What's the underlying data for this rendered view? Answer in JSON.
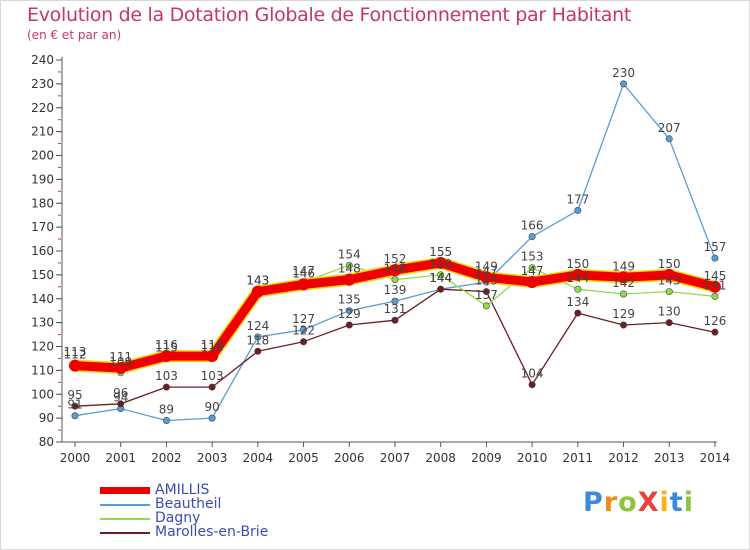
{
  "header": {
    "title": "Evolution de la Dotation Globale de Fonctionnement par Habitant",
    "subtitle": "(en € et par an)"
  },
  "brand": {
    "text": "ProXiti",
    "letters": [
      {
        "ch": "P",
        "color": "#3c8bd8"
      },
      {
        "ch": "r",
        "color": "#f08a1c"
      },
      {
        "ch": "o",
        "color": "#8cc63f"
      },
      {
        "ch": "X",
        "color": "#e8403a"
      },
      {
        "ch": "i",
        "color": "#f5b21a"
      },
      {
        "ch": "t",
        "color": "#3c8bd8"
      },
      {
        "ch": "i",
        "color": "#8cc63f"
      }
    ]
  },
  "chart_data": {
    "type": "line",
    "x": [
      "2000",
      "2001",
      "2002",
      "2003",
      "2004",
      "2005",
      "2006",
      "2007",
      "2008",
      "2009",
      "2010",
      "2011",
      "2012",
      "2013",
      "2014"
    ],
    "ylim": [
      80,
      240
    ],
    "yticks": [
      80,
      90,
      100,
      110,
      120,
      130,
      140,
      150,
      160,
      170,
      180,
      190,
      200,
      210,
      220,
      230,
      240
    ],
    "grid": false,
    "legend_position": "bottom-left",
    "series": [
      {
        "name": "AMILLIS",
        "color": "#ee0000",
        "values": [
          112,
          111,
          116,
          116,
          143,
          146,
          148,
          152,
          155,
          149,
          147,
          150,
          149,
          150,
          145
        ],
        "labels": [
          "112",
          "111",
          "116",
          "116",
          "143",
          "146",
          "148",
          "152",
          "155",
          "149",
          "147",
          "150",
          "149",
          "150",
          "145"
        ]
      },
      {
        "name": "Beautheil",
        "color": "#5b9bd5",
        "values": [
          91,
          94,
          89,
          90,
          124,
          127,
          135,
          139,
          144,
          147,
          166,
          177,
          230,
          207,
          157
        ],
        "labels": [
          "91",
          "94",
          "89",
          "90",
          "124",
          "127",
          "135",
          "139",
          "144",
          "147",
          "166",
          "177",
          "230",
          "207",
          "157"
        ]
      },
      {
        "name": "Dagny",
        "color": "#8fdc4c",
        "values": [
          113,
          109,
          115,
          115,
          143,
          147,
          154,
          148,
          150,
          137,
          153,
          144,
          142,
          143,
          141
        ],
        "labels": [
          "113",
          "109",
          "115",
          "115",
          "143",
          "147",
          "154",
          "148",
          "150",
          "137",
          "153",
          "144",
          "142",
          "143",
          "141"
        ]
      },
      {
        "name": "Marolles-en-Brie",
        "color": "#6b1f23",
        "values": [
          95,
          96,
          103,
          103,
          118,
          122,
          129,
          131,
          144,
          143,
          104,
          134,
          129,
          130,
          126
        ],
        "labels": [
          "95",
          "96",
          "103",
          "103",
          "118",
          "122",
          "129",
          "131",
          "144",
          "143",
          "104",
          "134",
          "129",
          "130",
          "126"
        ]
      }
    ]
  }
}
